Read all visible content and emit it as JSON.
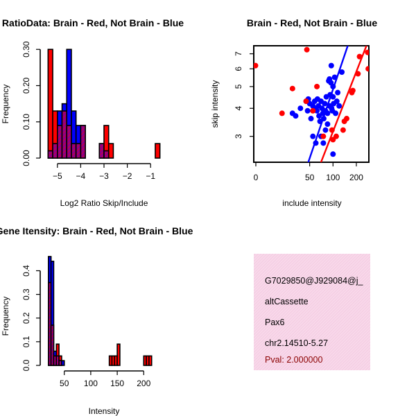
{
  "colors": {
    "brain": "#ff0000",
    "not_brain": "#0000ff",
    "overlap": "#8b008b",
    "info_bg": "#f8d8ea",
    "pval": "#8b0000"
  },
  "chart_data": [
    {
      "id": "ratio",
      "type": "bar",
      "title": "RatioData: Brain - Red, Not Brain - Blue",
      "xlabel": "Log2 Ratio Skip/Include",
      "ylabel": "Frequency",
      "xlim": [
        -5.5,
        -0.5
      ],
      "ylim": [
        0,
        0.31
      ],
      "bin_width": 0.2,
      "xticks": [
        -5,
        -4,
        -3,
        -2,
        -1
      ],
      "xtick_labels": [
        "−5",
        "−4",
        "−3",
        "−2",
        "−1"
      ],
      "yticks": [
        0,
        0.1,
        0.2,
        0.3
      ],
      "ytick_labels": [
        "0.00",
        "0.10",
        "0.20",
        "0.30"
      ],
      "series": [
        {
          "name": "Brain",
          "bins": [
            {
              "x0": -5.4,
              "value": 0.3
            },
            {
              "x0": -5.2,
              "value": 0.13
            },
            {
              "x0": -5.0,
              "value": 0.09
            },
            {
              "x0": -4.8,
              "value": 0.13
            },
            {
              "x0": -4.6,
              "value": 0.09
            },
            {
              "x0": -4.4,
              "value": 0.04
            },
            {
              "x0": -4.2,
              "value": 0.04
            },
            {
              "x0": -4.0,
              "value": 0.09
            },
            {
              "x0": -3.2,
              "value": 0.04
            },
            {
              "x0": -3.0,
              "value": 0.09
            },
            {
              "x0": -2.8,
              "value": 0.04
            },
            {
              "x0": -0.8,
              "value": 0.04
            }
          ]
        },
        {
          "name": "Not Brain",
          "bins": [
            {
              "x0": -5.4,
              "value": 0.02
            },
            {
              "x0": -5.2,
              "value": 0.04
            },
            {
              "x0": -5.0,
              "value": 0.13
            },
            {
              "x0": -4.8,
              "value": 0.15
            },
            {
              "x0": -4.6,
              "value": 0.3
            },
            {
              "x0": -4.4,
              "value": 0.13
            },
            {
              "x0": -4.2,
              "value": 0.09
            },
            {
              "x0": -4.0,
              "value": 0.09
            },
            {
              "x0": -3.2,
              "value": 0.04
            },
            {
              "x0": -3.0,
              "value": 0.02
            }
          ]
        }
      ]
    },
    {
      "id": "scatter",
      "type": "scatter",
      "title": "Brain - Red, Not Brain - Blue",
      "xlabel": "include intensity",
      "ylabel": "skip intensity",
      "axis_scale": "log",
      "xlim": [
        9.5,
        290
      ],
      "ylim": [
        2.3,
        7.6
      ],
      "xticks": [
        0,
        50,
        100,
        200
      ],
      "xtick_labels": [
        "0",
        "50",
        "100",
        "200"
      ],
      "yticks": [
        3,
        4,
        5,
        6,
        7
      ],
      "ytick_labels": [
        "3",
        "4",
        "5",
        "6",
        "7"
      ],
      "series": [
        {
          "name": "Not Brain",
          "points": [
            [
              30,
              3.8
            ],
            [
              33,
              3.7
            ],
            [
              38,
              4.0
            ],
            [
              48,
              4.4
            ],
            [
              45,
              4.3
            ],
            [
              47,
              3.9
            ],
            [
              50,
              4.2
            ],
            [
              52,
              3.6
            ],
            [
              55,
              4.1
            ],
            [
              58,
              4.3
            ],
            [
              60,
              4.0
            ],
            [
              62,
              3.9
            ],
            [
              63,
              4.4
            ],
            [
              65,
              4.1
            ],
            [
              66,
              3.7
            ],
            [
              68,
              3.5
            ],
            [
              70,
              4.3
            ],
            [
              72,
              4.0
            ],
            [
              74,
              3.8
            ],
            [
              76,
              3.6
            ],
            [
              78,
              4.2
            ],
            [
              80,
              3.9
            ],
            [
              82,
              4.5
            ],
            [
              85,
              3.4
            ],
            [
              88,
              5.3
            ],
            [
              90,
              5.4
            ],
            [
              92,
              4.6
            ],
            [
              94,
              5.2
            ],
            [
              96,
              4.0
            ],
            [
              98,
              3.9
            ],
            [
              100,
              4.5
            ],
            [
              102,
              4.2
            ],
            [
              108,
              3.8
            ],
            [
              112,
              4.3
            ],
            [
              115,
              4.7
            ],
            [
              120,
              4.1
            ],
            [
              130,
              5.8
            ],
            [
              95,
              6.2
            ],
            [
              100,
              5.0
            ],
            [
              105,
              5.5
            ],
            [
              55,
              3.0
            ],
            [
              60,
              2.8
            ],
            [
              70,
              3.0
            ],
            [
              75,
              2.8
            ],
            [
              80,
              3.2
            ],
            [
              100,
              2.5
            ],
            [
              85,
              3.8
            ],
            [
              90,
              4.1
            ]
          ]
        },
        {
          "name": "Brain",
          "points": [
            [
              10,
              6.2
            ],
            [
              46,
              7.3
            ],
            [
              22,
              3.8
            ],
            [
              30,
              4.9
            ],
            [
              45,
              4.3
            ],
            [
              55,
              3.9
            ],
            [
              62,
              5.0
            ],
            [
              75,
              3.0
            ],
            [
              97,
              3.2
            ],
            [
              110,
              3.0
            ],
            [
              135,
              3.2
            ],
            [
              140,
              3.5
            ],
            [
              150,
              3.6
            ],
            [
              175,
              4.7
            ],
            [
              180,
              4.8
            ],
            [
              210,
              5.7
            ],
            [
              220,
              6.8
            ],
            [
              280,
              7.1
            ],
            [
              285,
              6.0
            ],
            [
              100,
              2.9
            ]
          ]
        }
      ],
      "fit_lines": [
        {
          "name": "Not Brain",
          "from": [
            48,
            2.3
          ],
          "to": [
            155,
            7.6
          ]
        },
        {
          "name": "Brain",
          "from": [
            70,
            2.3
          ],
          "to": [
            270,
            7.6
          ]
        }
      ]
    },
    {
      "id": "intensity",
      "type": "bar",
      "title": "Gene Itensity: Brain - Red, Not Brain - Blue",
      "xlabel": "Intensity",
      "ylabel": "Frequency",
      "xlim": [
        15,
        235
      ],
      "ylim": [
        0,
        0.46
      ],
      "bin_width": 5,
      "xticks": [
        50,
        100,
        150,
        200
      ],
      "xtick_labels": [
        "50",
        "100",
        "150",
        "200"
      ],
      "yticks": [
        0,
        0.1,
        0.2,
        0.3,
        0.4
      ],
      "ytick_labels": [
        "0.0",
        "0.1",
        "0.2",
        "0.3",
        "0.4"
      ],
      "series": [
        {
          "name": "Brain",
          "bins": [
            {
              "x0": 20,
              "value": 0.35
            },
            {
              "x0": 25,
              "value": 0.17
            },
            {
              "x0": 30,
              "value": 0.04
            },
            {
              "x0": 35,
              "value": 0.09
            },
            {
              "x0": 40,
              "value": 0.04
            },
            {
              "x0": 135,
              "value": 0.04
            },
            {
              "x0": 140,
              "value": 0.04
            },
            {
              "x0": 145,
              "value": 0.04
            },
            {
              "x0": 150,
              "value": 0.09
            },
            {
              "x0": 200,
              "value": 0.04
            },
            {
              "x0": 205,
              "value": 0.04
            },
            {
              "x0": 210,
              "value": 0.04
            }
          ]
        },
        {
          "name": "Not Brain",
          "bins": [
            {
              "x0": 20,
              "value": 0.46
            },
            {
              "x0": 25,
              "value": 0.44
            },
            {
              "x0": 30,
              "value": 0.06
            },
            {
              "x0": 35,
              "value": 0.04
            },
            {
              "x0": 40,
              "value": 0.02
            },
            {
              "x0": 45,
              "value": 0.02
            }
          ]
        }
      ]
    }
  ],
  "info_box": {
    "line1": "G7029850@J929084@j_",
    "line2": "altCassette",
    "line3": "Pax6",
    "line4": "chr2.14510-5.27",
    "pval": "Pval: 2.000000"
  }
}
